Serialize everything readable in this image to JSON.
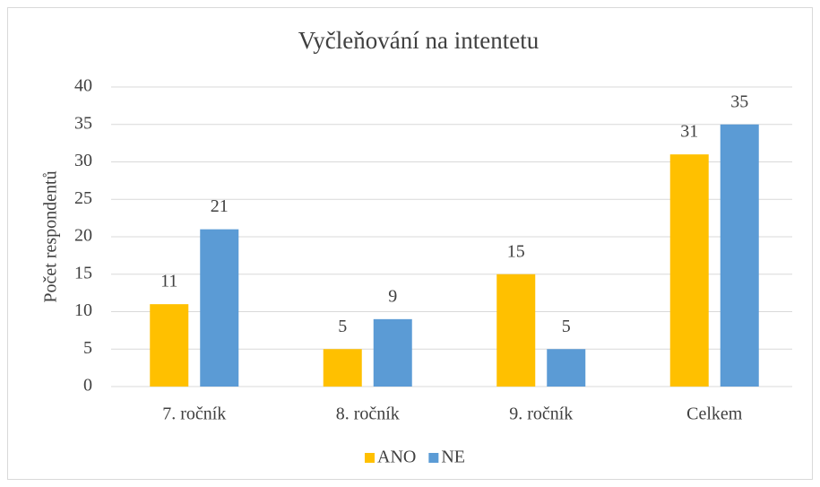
{
  "chart_data": {
    "type": "bar",
    "title": "Vyčleňování na intentetu",
    "y_label": "Počet respondentů",
    "categories": [
      "7. ročník",
      "8. ročník",
      "9. ročník",
      "Celkem"
    ],
    "series": [
      {
        "name": "ANO",
        "color": "#ffc000",
        "values": [
          11,
          5,
          15,
          31
        ]
      },
      {
        "name": "NE",
        "color": "#5b9bd5",
        "values": [
          21,
          9,
          5,
          35
        ]
      }
    ],
    "ylim": [
      0,
      40
    ],
    "yticks": [
      0,
      5,
      10,
      15,
      20,
      25,
      30,
      35,
      40
    ],
    "grid": true,
    "legend": "bottom"
  }
}
